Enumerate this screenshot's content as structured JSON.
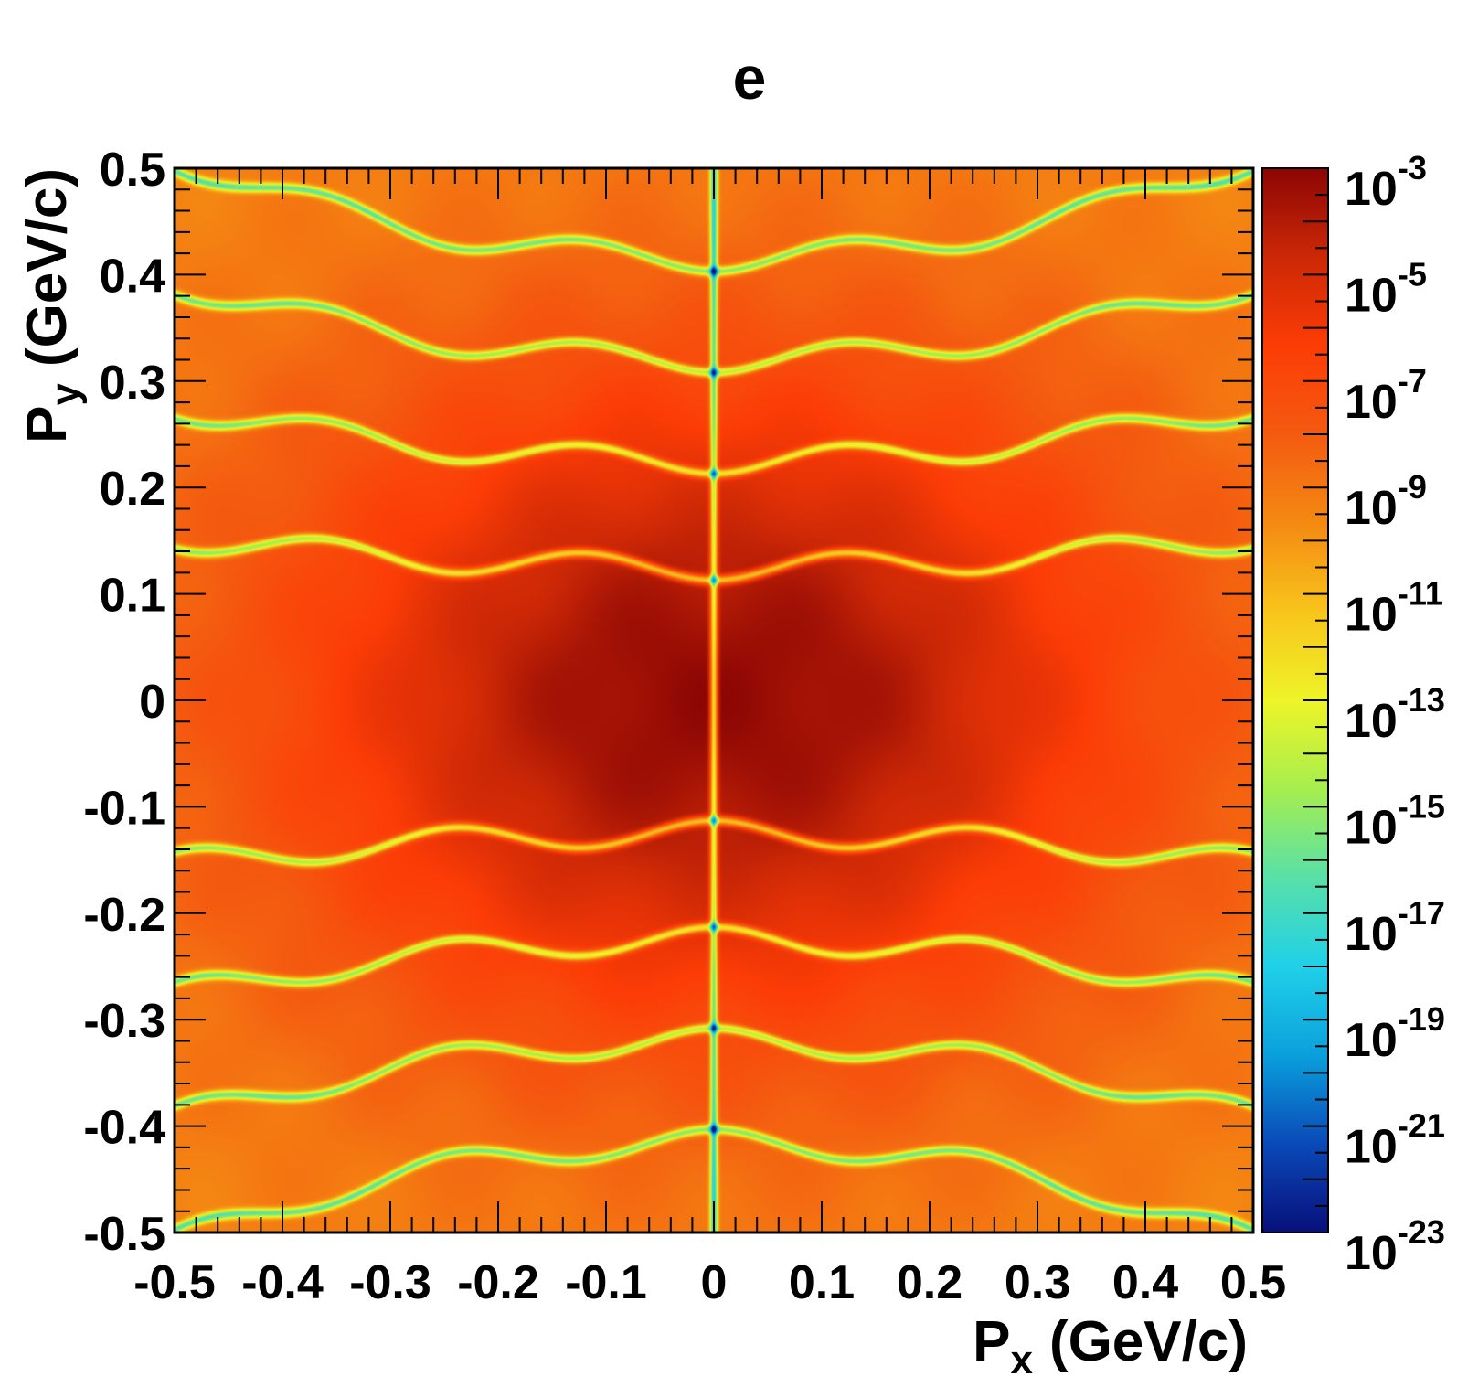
{
  "chart_data": {
    "type": "heatmap",
    "title": "e",
    "xlabel": {
      "main": "P",
      "sub": "x",
      "unit": "(GeV/c)"
    },
    "ylabel": {
      "main": "P",
      "sub": "y",
      "unit": "(GeV/c)"
    },
    "xlim": [
      -0.5,
      0.5
    ],
    "ylim": [
      -0.5,
      0.5
    ],
    "x_ticks": [
      "-0.5",
      "-0.4",
      "-0.3",
      "-0.2",
      "-0.1",
      "0",
      "0.1",
      "0.2",
      "0.3",
      "0.4",
      "0.5"
    ],
    "y_ticks": [
      "-0.5",
      "-0.4",
      "-0.3",
      "-0.2",
      "-0.1",
      "0",
      "0.1",
      "0.2",
      "0.3",
      "0.4",
      "0.5"
    ],
    "z_scale": "log",
    "zlim": [
      1e-23,
      0.001
    ],
    "colorbar_ticks": [
      {
        "base": "10",
        "exp": "-23",
        "value": -23
      },
      {
        "base": "10",
        "exp": "-21",
        "value": -21
      },
      {
        "base": "10",
        "exp": "-19",
        "value": -19
      },
      {
        "base": "10",
        "exp": "-17",
        "value": -17
      },
      {
        "base": "10",
        "exp": "-15",
        "value": -15
      },
      {
        "base": "10",
        "exp": "-13",
        "value": -13
      },
      {
        "base": "10",
        "exp": "-11",
        "value": -11
      },
      {
        "base": "10",
        "exp": "-9",
        "value": -9
      },
      {
        "base": "10",
        "exp": "-7",
        "value": -7
      },
      {
        "base": "10",
        "exp": "-5",
        "value": -5
      },
      {
        "base": "10",
        "exp": "-3",
        "value": -3
      }
    ],
    "colormap": [
      "#08107a",
      "#0a49b8",
      "#0aa0dc",
      "#20d0e8",
      "#58e0a8",
      "#a6ee4e",
      "#eef428",
      "#f8c41c",
      "#f48a12",
      "#f45a10",
      "#fc3c06",
      "#cc2806",
      "#8c0604"
    ],
    "grid": false,
    "maxima_px": [
      -0.05,
      0.05
    ],
    "node_rings_py": [
      0.125,
      0.225,
      0.32,
      0.415
    ],
    "peak_log10_density": -3.2,
    "edge_log10_density": -9.5
  }
}
